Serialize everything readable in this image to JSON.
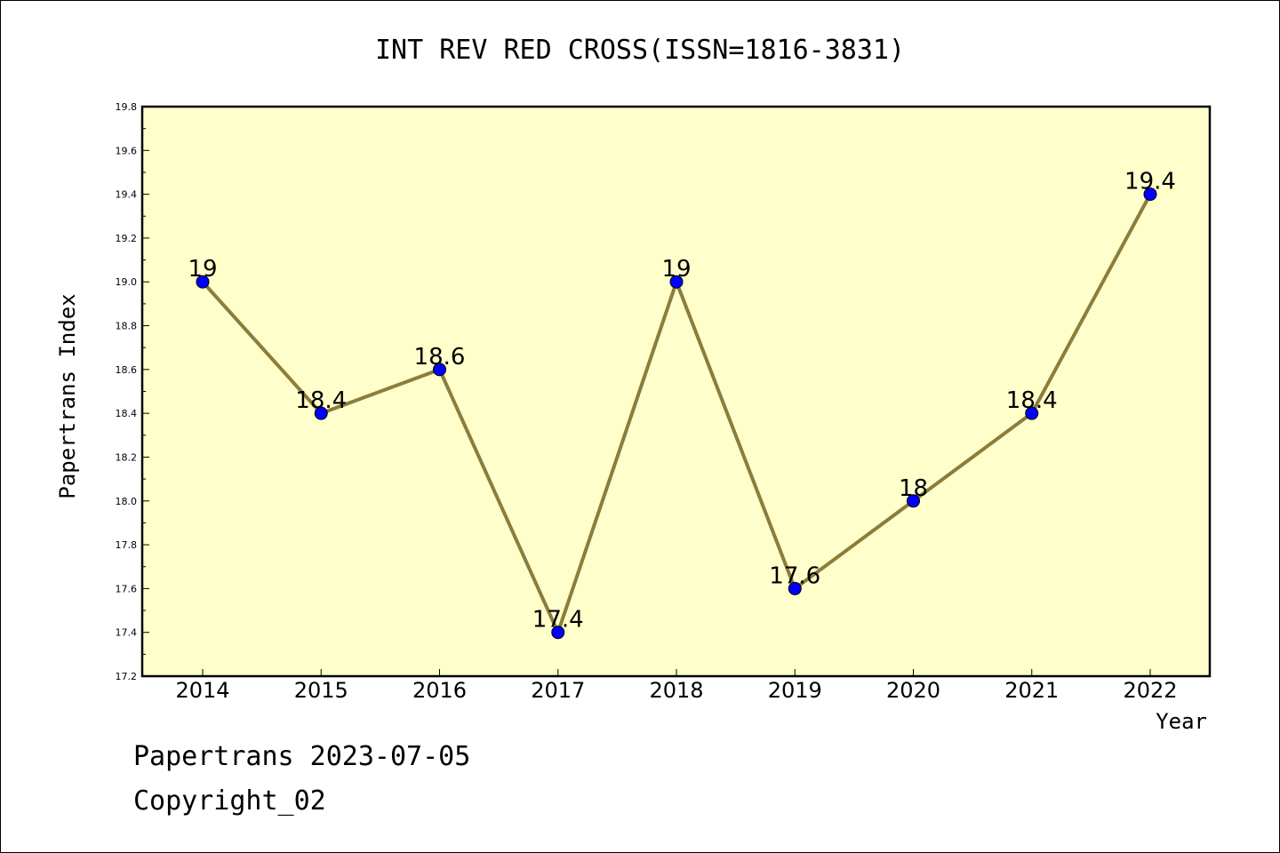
{
  "chart_data": {
    "type": "line",
    "title": "INT REV RED CROSS(ISSN=1816-3831)",
    "xlabel": "Year",
    "ylabel": "Papertrans Index",
    "categories": [
      "2014",
      "2015",
      "2016",
      "2017",
      "2018",
      "2019",
      "2020",
      "2021",
      "2022"
    ],
    "series": [
      {
        "values": [
          19,
          18.4,
          18.6,
          17.4,
          19,
          17.6,
          18,
          18.4,
          19.4
        ]
      }
    ],
    "data_labels": [
      "19",
      "18.4",
      "18.6",
      "17.4",
      "19",
      "17.6",
      "18",
      "18.4",
      "19.4"
    ],
    "ylim": [
      17.2,
      19.8
    ],
    "yticks": [
      "17.2",
      "17.4",
      "17.6",
      "17.8",
      "18.0",
      "18.2",
      "18.4",
      "18.6",
      "18.8",
      "19.0",
      "19.2",
      "19.4",
      "19.6",
      "19.8"
    ],
    "grid": false,
    "colors": {
      "plot_background": "#ffffcc",
      "line": "#8b7d3a",
      "marker": "#0000ff"
    }
  },
  "footer": {
    "line1": "Papertrans 2023-07-05",
    "line2": "Copyright_02"
  }
}
